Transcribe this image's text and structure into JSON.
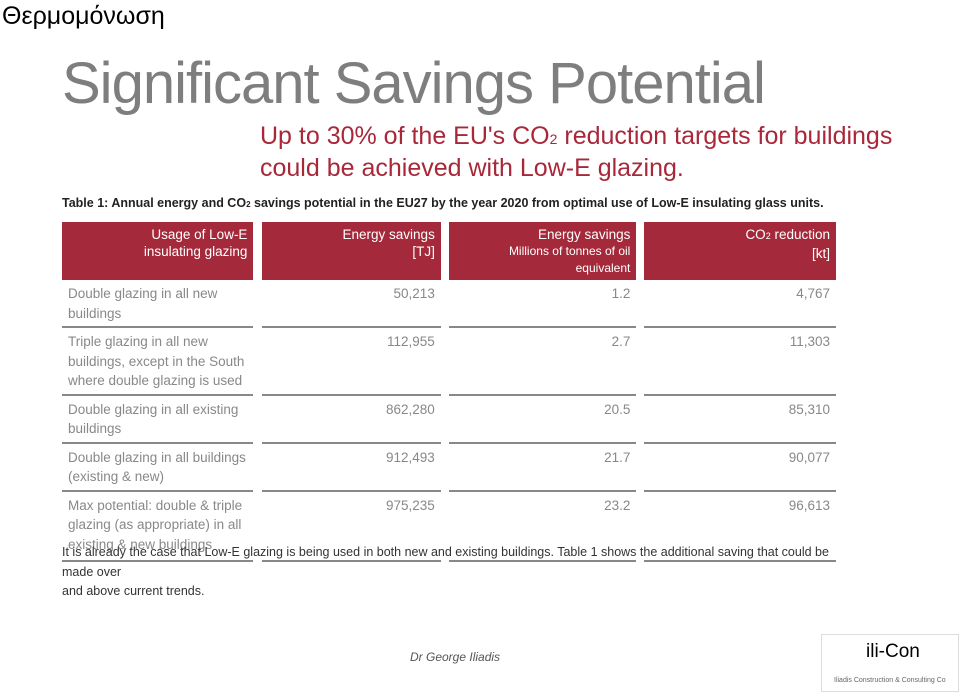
{
  "slide": {
    "title": "Θερμομόνωση"
  },
  "heading": "Significant Savings Potential",
  "subheading": {
    "line1_pre": "Up to 30% of the EU's CO",
    "line1_sub": "2",
    "line1_post": " reduction targets for buildings",
    "line2": "could be achieved with Low-E glazing."
  },
  "table_caption": {
    "pre": "Table 1: Annual energy and CO",
    "sub": "2",
    "post": " savings potential in the EU27 by the year 2020 from optimal use of Low-E insulating glass units."
  },
  "table": {
    "headers": {
      "usage_line1": "Usage of Low-E",
      "usage_line2": "insulating glazing",
      "energy_tj_line1": "Energy savings",
      "energy_tj_line2": "[TJ]",
      "energy_oil_line1": "Energy savings",
      "energy_oil_line2": "Millions of tonnes of oil equivalent",
      "co2_pre": "CO",
      "co2_sub": "2",
      "co2_post": " reduction",
      "co2_line2": "[kt]"
    },
    "rows": [
      {
        "usage": [
          "Double glazing in all new",
          "buildings"
        ],
        "energy_tj": "50,213",
        "energy_oil": "1.2",
        "co2": "4,767"
      },
      {
        "usage": [
          "Triple glazing in all new",
          "buildings, except in the South",
          "where double glazing is used"
        ],
        "energy_tj": "112,955",
        "energy_oil": "2.7",
        "co2": "11,303"
      },
      {
        "usage": [
          "Double glazing in all existing",
          "buildings"
        ],
        "energy_tj": "862,280",
        "energy_oil": "20.5",
        "co2": "85,310"
      },
      {
        "usage": [
          "Double glazing in all buildings",
          "(existing & new)"
        ],
        "energy_tj": "912,493",
        "energy_oil": "21.7",
        "co2": "90,077"
      },
      {
        "usage": [
          "Max potential: double & triple",
          "glazing (as appropriate) in all",
          "existing & new buildings"
        ],
        "energy_tj": "975,235",
        "energy_oil": "23.2",
        "co2": "96,613"
      }
    ]
  },
  "footnote": {
    "line1": "It is already the case that Low-E glazing is being used in both new and existing buildings. Table 1 shows the additional saving that could be made over",
    "line2": "and above current trends."
  },
  "footer": {
    "author": "Dr George Iliadis",
    "logo": "ili-Con",
    "logo_tagline": "Iliadis Construction & Consulting Co"
  }
}
